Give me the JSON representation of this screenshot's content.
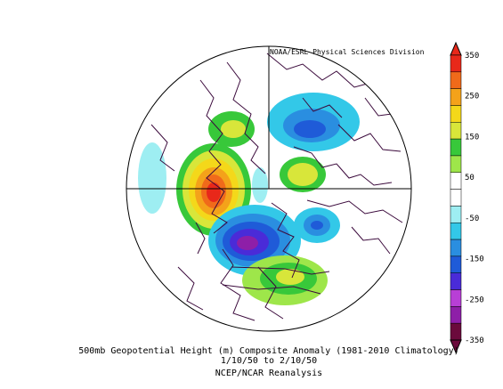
{
  "credit": "NOAA/ESRL Physical Sciences Division",
  "caption": {
    "line1": "500mb Geopotential Height (m) Composite Anomaly (1981-2010 Climatology)",
    "line2": "1/10/50  to 2/10/50",
    "line3": "NCEP/NCAR Reanalysis"
  },
  "colorbar": {
    "levels": [
      "350",
      "250",
      "150",
      "50",
      "-50",
      "-150",
      "-250",
      "-350"
    ],
    "colors": [
      "#6b0a3c",
      "#8e1fa8",
      "#b83fd6",
      "#4a2bd8",
      "#1f5bd8",
      "#2a8ee0",
      "#33c8e8",
      "#9eeef2",
      "#ffffff",
      "#ffffff",
      "#9ee64a",
      "#38c83a",
      "#d8e63a",
      "#f4d81a",
      "#f4a21a",
      "#f06a1a",
      "#e8281a"
    ]
  },
  "map": {
    "projection": "north polar stereographic",
    "anomaly_centers": [
      {
        "color": "#e8281a",
        "sign": "positive",
        "region": "northeast Pacific / Alaska"
      },
      {
        "color": "#8e1fa8",
        "sign": "negative",
        "region": "Aleutians / Bering"
      },
      {
        "color": "#1f5bd8",
        "sign": "negative",
        "region": "Siberia"
      },
      {
        "color": "#2a8ee0",
        "sign": "negative",
        "region": "Atlantic / Europe"
      },
      {
        "color": "#38c83a",
        "sign": "positive",
        "region": "eastern Asia"
      },
      {
        "color": "#d8e63a",
        "sign": "positive",
        "region": "Scandinavia"
      },
      {
        "color": "#9ee64a",
        "sign": "positive",
        "region": "eastern North America"
      }
    ]
  }
}
